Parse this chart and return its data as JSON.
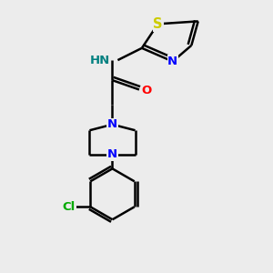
{
  "bg_color": "#ececec",
  "bond_color": "black",
  "bond_width": 1.8,
  "atom_colors": {
    "N": "#0000ff",
    "O": "#ff0000",
    "S": "#cccc00",
    "Cl": "#00aa00",
    "H": "#008080"
  },
  "font_size": 9.5,
  "fig_size": [
    3.0,
    3.0
  ],
  "dpi": 100,
  "xlim": [
    0,
    10
  ],
  "ylim": [
    0,
    10
  ]
}
